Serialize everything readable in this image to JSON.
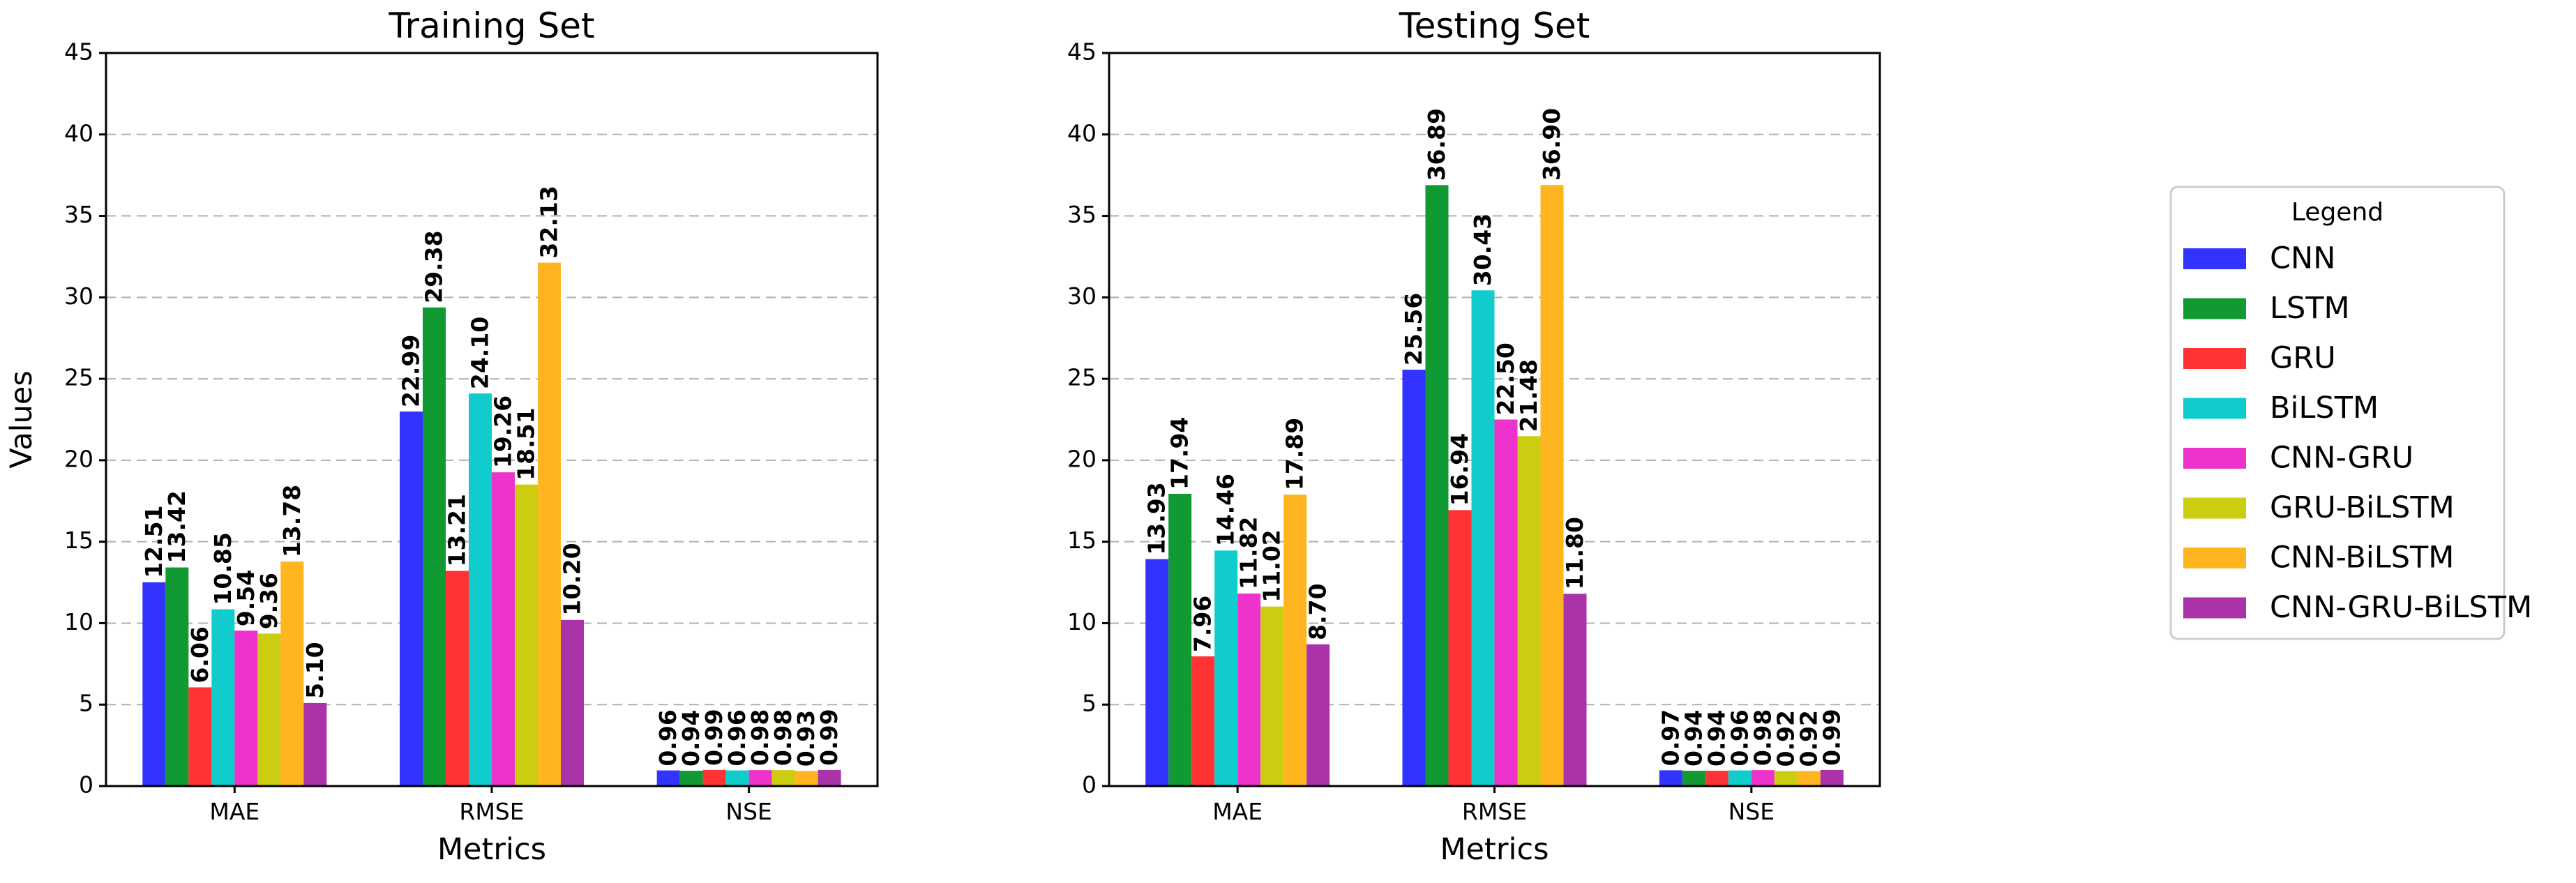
{
  "chart_data": [
    {
      "type": "bar",
      "title": "Training Set",
      "xlabel": "Metrics",
      "ylabel": "Values",
      "ylim": [
        0,
        45
      ],
      "yticks": [
        0,
        5,
        10,
        15,
        20,
        25,
        30,
        35,
        40,
        45
      ],
      "grid": true,
      "categories": [
        "MAE",
        "RMSE",
        "NSE"
      ],
      "series": [
        {
          "name": "CNN",
          "color": "#3333ff",
          "values": [
            12.51,
            22.99,
            0.96
          ]
        },
        {
          "name": "LSTM",
          "color": "#119933",
          "values": [
            13.42,
            29.38,
            0.94
          ]
        },
        {
          "name": "GRU",
          "color": "#ff3333",
          "values": [
            6.06,
            13.21,
            0.99
          ]
        },
        {
          "name": "BiLSTM",
          "color": "#11cccc",
          "values": [
            10.85,
            24.1,
            0.96
          ]
        },
        {
          "name": "CNN-GRU",
          "color": "#ee33cc",
          "values": [
            9.54,
            19.26,
            0.98
          ]
        },
        {
          "name": "GRU-BiLSTM",
          "color": "#cccc11",
          "values": [
            9.36,
            18.51,
            0.98
          ]
        },
        {
          "name": "CNN-BiLSTM",
          "color": "#ffb520",
          "values": [
            13.78,
            32.13,
            0.93
          ]
        },
        {
          "name": "CNN-GRU-BiLSTM",
          "color": "#aa33aa",
          "values": [
            5.1,
            10.2,
            0.99
          ]
        }
      ],
      "data_labels": [
        [
          "12.51",
          "22.99",
          "0.96"
        ],
        [
          "13.42",
          "29.38",
          "0.94"
        ],
        [
          "6.06",
          "13.21",
          "0.99"
        ],
        [
          "10.85",
          "24.10",
          "0.96"
        ],
        [
          "9.54",
          "19.26",
          "0.98"
        ],
        [
          "9.36",
          "18.51",
          "0.98"
        ],
        [
          "13.78",
          "32.13",
          "0.93"
        ],
        [
          "5.10",
          "10.20",
          "0.99"
        ]
      ]
    },
    {
      "type": "bar",
      "title": "Testing Set",
      "xlabel": "Metrics",
      "ylabel": "",
      "ylim": [
        0,
        45
      ],
      "yticks": [
        0,
        5,
        10,
        15,
        20,
        25,
        30,
        35,
        40,
        45
      ],
      "grid": true,
      "categories": [
        "MAE",
        "RMSE",
        "NSE"
      ],
      "series": [
        {
          "name": "CNN",
          "color": "#3333ff",
          "values": [
            13.93,
            25.56,
            0.97
          ]
        },
        {
          "name": "LSTM",
          "color": "#119933",
          "values": [
            17.94,
            36.89,
            0.94
          ]
        },
        {
          "name": "GRU",
          "color": "#ff3333",
          "values": [
            7.96,
            16.94,
            0.94
          ]
        },
        {
          "name": "BiLSTM",
          "color": "#11cccc",
          "values": [
            14.46,
            30.43,
            0.96
          ]
        },
        {
          "name": "CNN-GRU",
          "color": "#ee33cc",
          "values": [
            11.82,
            22.5,
            0.98
          ]
        },
        {
          "name": "GRU-BiLSTM",
          "color": "#cccc11",
          "values": [
            11.02,
            21.48,
            0.92
          ]
        },
        {
          "name": "CNN-BiLSTM",
          "color": "#ffb520",
          "values": [
            17.89,
            36.9,
            0.92
          ]
        },
        {
          "name": "CNN-GRU-BiLSTM",
          "color": "#aa33aa",
          "values": [
            8.7,
            11.8,
            0.99
          ]
        }
      ],
      "data_labels": [
        [
          "13.93",
          "25.56",
          "0.97"
        ],
        [
          "17.94",
          "36.89",
          "0.94"
        ],
        [
          "7.96",
          "16.94",
          "0.94"
        ],
        [
          "14.46",
          "30.43",
          "0.96"
        ],
        [
          "11.82",
          "22.50",
          "0.98"
        ],
        [
          "11.02",
          "21.48",
          "0.92"
        ],
        [
          "17.89",
          "36.90",
          "0.92"
        ],
        [
          "8.70",
          "11.80",
          "0.99"
        ]
      ]
    }
  ],
  "legend": {
    "title": "Legend",
    "placement": "right",
    "items": [
      {
        "label": "CNN",
        "color": "#3333ff"
      },
      {
        "label": "LSTM",
        "color": "#119933"
      },
      {
        "label": "GRU",
        "color": "#ff3333"
      },
      {
        "label": "BiLSTM",
        "color": "#11cccc"
      },
      {
        "label": "CNN-GRU",
        "color": "#ee33cc"
      },
      {
        "label": "GRU-BiLSTM",
        "color": "#cccc11"
      },
      {
        "label": "CNN-BiLSTM",
        "color": "#ffb520"
      },
      {
        "label": "CNN-GRU-BiLSTM",
        "color": "#aa33aa"
      }
    ]
  }
}
